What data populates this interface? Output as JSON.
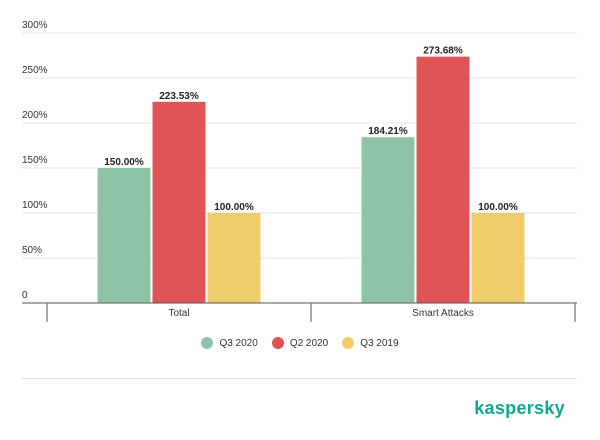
{
  "chart_data": {
    "type": "bar",
    "categories": [
      "Total",
      "Smart Attacks"
    ],
    "series": [
      {
        "name": "Q3 2020",
        "values": [
          150.0,
          184.21
        ],
        "labels": [
          "150.00%",
          "184.21%"
        ],
        "color": "#8fc3a6"
      },
      {
        "name": "Q2 2020",
        "values": [
          223.53,
          273.68
        ],
        "labels": [
          "223.53%",
          "273.68%"
        ],
        "color": "#e05356"
      },
      {
        "name": "Q3 2019",
        "values": [
          100.0,
          100.0
        ],
        "labels": [
          "100.00%",
          "100.00%"
        ],
        "color": "#f1cc6b"
      }
    ],
    "ylim": [
      0,
      300
    ],
    "yticks": [
      0,
      50,
      100,
      150,
      200,
      250,
      300
    ],
    "ytick_labels": [
      "0",
      "50%",
      "100%",
      "150%",
      "200%",
      "250%",
      "300%"
    ],
    "grid": true,
    "legend_position": "bottom"
  },
  "brand": {
    "name": "kaspersky",
    "color": "#11a88f"
  }
}
